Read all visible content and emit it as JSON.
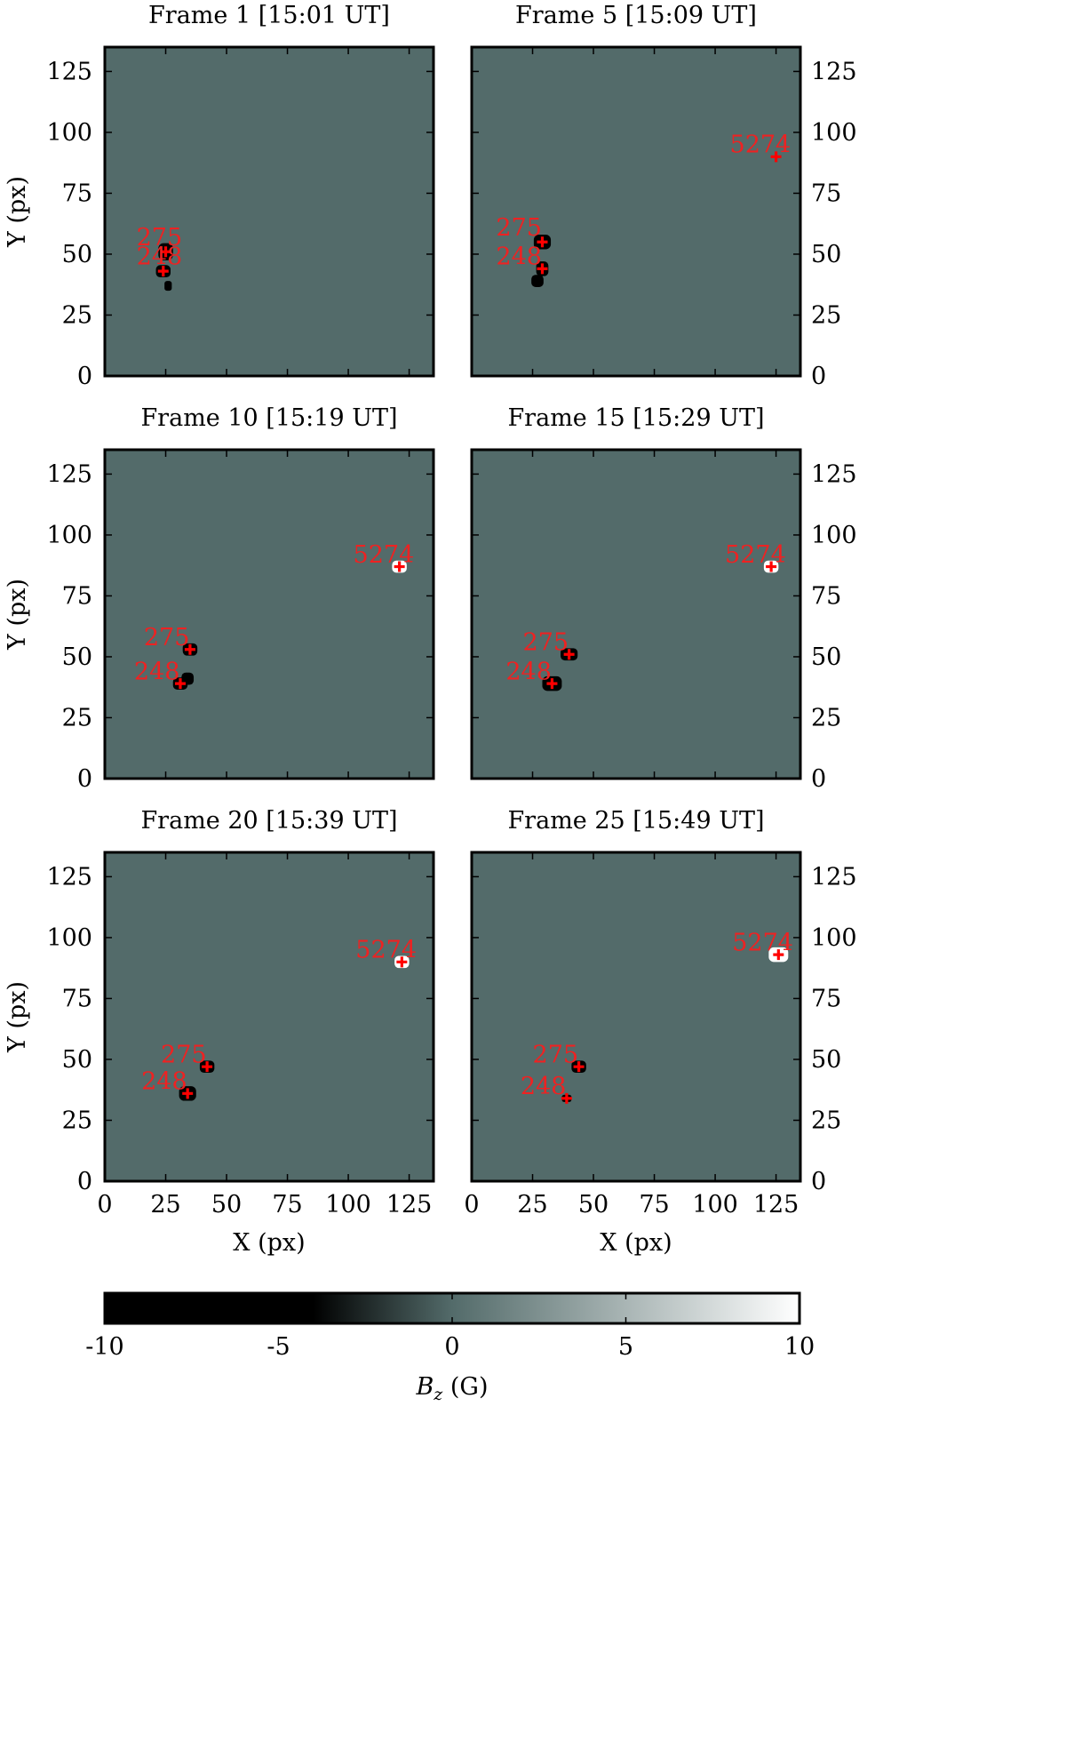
{
  "chart_data": {
    "type": "heatmap",
    "xlabel": "X (px)",
    "ylabel": "Y (px)",
    "xlim": [
      0,
      135
    ],
    "ylim": [
      0,
      135
    ],
    "x_ticks": [
      0,
      25,
      50,
      75,
      100,
      125
    ],
    "y_ticks": [
      0,
      25,
      50,
      75,
      100,
      125
    ],
    "background_value": 0,
    "colorbar": {
      "label_main": "B",
      "label_sub": "z",
      "label_unit": " (G)",
      "range": [
        -10,
        10
      ],
      "ticks": [
        -10,
        -5,
        0,
        5,
        10
      ],
      "tick_labels": [
        "-10",
        "-5",
        "0",
        "5",
        "10"
      ],
      "colors": {
        "min": "#000000",
        "mid": "#536b6a",
        "max": "#ffffff"
      }
    },
    "marker_color": "#ff0000",
    "label_color": "#ee2222",
    "panels": [
      {
        "title": "Frame 1 [15:01 UT]",
        "features": [
          {
            "id": "275",
            "x": 25,
            "y": 51,
            "label_x": 13,
            "label_y": 57,
            "polarity": "negative",
            "blob_w": 6,
            "blob_h": 7
          },
          {
            "id": "248",
            "x": 24,
            "y": 43,
            "label_x": 13,
            "label_y": 49,
            "polarity": "negative",
            "blob_w": 6,
            "blob_h": 5
          }
        ],
        "extra_blobs": [
          {
            "x": 26,
            "y": 37,
            "w": 3,
            "h": 4,
            "polarity": "negative"
          }
        ]
      },
      {
        "title": "Frame 5 [15:09 UT]",
        "features": [
          {
            "id": "5274",
            "x": 125,
            "y": 90,
            "label_x": 106,
            "label_y": 95,
            "polarity": "neutral",
            "blob_w": 0,
            "blob_h": 0
          },
          {
            "id": "275",
            "x": 29,
            "y": 55,
            "label_x": 10,
            "label_y": 61,
            "polarity": "negative",
            "blob_w": 7,
            "blob_h": 6
          },
          {
            "id": "248",
            "x": 29,
            "y": 44,
            "label_x": 10,
            "label_y": 49,
            "polarity": "negative",
            "blob_w": 5,
            "blob_h": 6
          }
        ],
        "extra_blobs": [
          {
            "x": 27,
            "y": 39,
            "w": 5,
            "h": 5,
            "polarity": "negative"
          }
        ]
      },
      {
        "title": "Frame 10 [15:19 UT]",
        "features": [
          {
            "id": "5274",
            "x": 121,
            "y": 87,
            "label_x": 102,
            "label_y": 92,
            "polarity": "positive",
            "blob_w": 6,
            "blob_h": 5
          },
          {
            "id": "275",
            "x": 35,
            "y": 53,
            "label_x": 16,
            "label_y": 58,
            "polarity": "negative",
            "blob_w": 6,
            "blob_h": 5
          },
          {
            "id": "248",
            "x": 31,
            "y": 39,
            "label_x": 12,
            "label_y": 44,
            "polarity": "negative",
            "blob_w": 6,
            "blob_h": 5
          }
        ],
        "extra_blobs": [
          {
            "x": 34,
            "y": 41,
            "w": 5,
            "h": 5,
            "polarity": "negative"
          }
        ]
      },
      {
        "title": "Frame 15 [15:29 UT]",
        "features": [
          {
            "id": "5274",
            "x": 123,
            "y": 87,
            "label_x": 104,
            "label_y": 92,
            "polarity": "positive",
            "blob_w": 6,
            "blob_h": 5
          },
          {
            "id": "275",
            "x": 40,
            "y": 51,
            "label_x": 21,
            "label_y": 56,
            "polarity": "negative",
            "blob_w": 7,
            "blob_h": 5
          },
          {
            "id": "248",
            "x": 33,
            "y": 39,
            "label_x": 14,
            "label_y": 44,
            "polarity": "negative",
            "blob_w": 8,
            "blob_h": 6
          }
        ],
        "extra_blobs": []
      },
      {
        "title": "Frame 20 [15:39 UT]",
        "features": [
          {
            "id": "5274",
            "x": 122,
            "y": 90,
            "label_x": 103,
            "label_y": 95,
            "polarity": "positive",
            "blob_w": 6,
            "blob_h": 5
          },
          {
            "id": "275",
            "x": 42,
            "y": 47,
            "label_x": 23,
            "label_y": 52,
            "polarity": "negative",
            "blob_w": 6,
            "blob_h": 5
          },
          {
            "id": "248",
            "x": 34,
            "y": 36,
            "label_x": 15,
            "label_y": 41,
            "polarity": "negative",
            "blob_w": 7,
            "blob_h": 6
          }
        ],
        "extra_blobs": []
      },
      {
        "title": "Frame 25 [15:49 UT]",
        "features": [
          {
            "id": "5274",
            "x": 126,
            "y": 93,
            "label_x": 107,
            "label_y": 98,
            "polarity": "positive",
            "blob_w": 8,
            "blob_h": 6
          },
          {
            "id": "275",
            "x": 44,
            "y": 47,
            "label_x": 25,
            "label_y": 52,
            "polarity": "negative",
            "blob_w": 6,
            "blob_h": 5
          },
          {
            "id": "248",
            "x": 39,
            "y": 34,
            "label_x": 20,
            "label_y": 39,
            "polarity": "negative",
            "blob_w": 4,
            "blob_h": 3
          }
        ],
        "extra_blobs": []
      }
    ]
  }
}
